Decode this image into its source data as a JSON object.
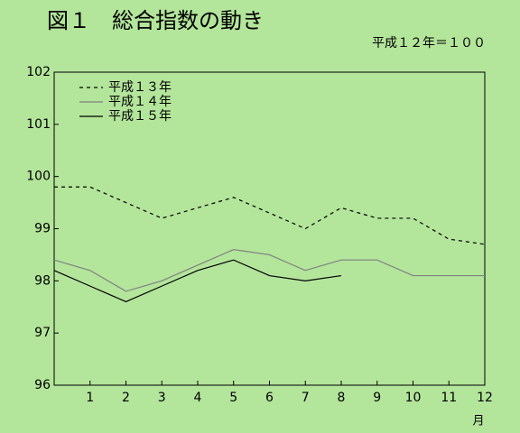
{
  "chart_data": {
    "type": "line",
    "title": "図１　総合指数の動き",
    "subtitle": "平成１２年＝１００",
    "x_label": "月",
    "x": [
      0,
      1,
      2,
      3,
      4,
      5,
      6,
      7,
      8,
      9,
      10,
      11,
      12
    ],
    "xlim": [
      0,
      12
    ],
    "xticks": [
      1,
      2,
      3,
      4,
      5,
      6,
      7,
      8,
      9,
      10,
      11,
      12
    ],
    "ylim": [
      96,
      102
    ],
    "yticks": [
      96,
      97,
      98,
      99,
      100,
      101,
      102
    ],
    "legend": "upper left",
    "series": [
      {
        "name": "平成１３年",
        "color": "#000000",
        "style": "dashed",
        "values": [
          99.8,
          99.8,
          99.5,
          99.2,
          99.4,
          99.6,
          99.3,
          99.0,
          99.4,
          99.2,
          99.2,
          98.8,
          98.7
        ]
      },
      {
        "name": "平成１４年",
        "color": "#808080",
        "style": "solid",
        "values": [
          98.4,
          98.2,
          97.8,
          98.0,
          98.3,
          98.6,
          98.5,
          98.2,
          98.4,
          98.4,
          98.1,
          98.1,
          98.1
        ]
      },
      {
        "name": "平成１５年",
        "color": "#000000",
        "style": "solid",
        "values": [
          98.2,
          97.9,
          97.6,
          97.9,
          98.2,
          98.4,
          98.1,
          98.0,
          98.1,
          null,
          null,
          null,
          null
        ]
      }
    ]
  }
}
